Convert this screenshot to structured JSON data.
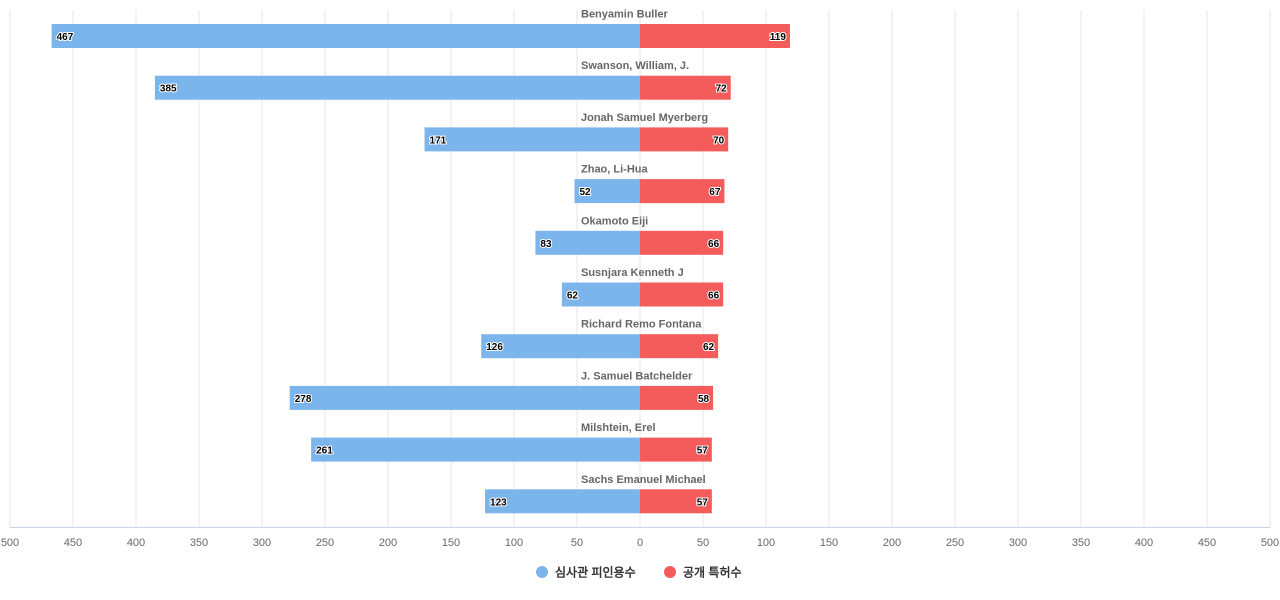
{
  "chart_data": {
    "type": "bar",
    "orientation": "horizontal-butterfly",
    "categories": [
      "Benyamin Buller",
      "Swanson, William, J.",
      "Jonah Samuel Myerberg",
      "Zhao, Li-Hua",
      "Okamoto Eiji",
      "Susnjara Kenneth J",
      "Richard Remo Fontana",
      "J. Samuel Batchelder",
      "Milshtein, Erel",
      "Sachs Emanuel Michael"
    ],
    "series": [
      {
        "name": "심사관 피인용수",
        "side": "left",
        "color": "#7cb5ec",
        "values": [
          467,
          385,
          171,
          52,
          83,
          62,
          126,
          278,
          261,
          123
        ]
      },
      {
        "name": "공개 특허수",
        "side": "right",
        "color": "#f45b5b",
        "values": [
          119,
          72,
          70,
          67,
          66,
          66,
          62,
          58,
          57,
          57
        ]
      }
    ],
    "xlim": [
      -500,
      500
    ],
    "ticks": [
      "500",
      "450",
      "400",
      "350",
      "300",
      "250",
      "200",
      "150",
      "100",
      "50",
      "0",
      "50",
      "100",
      "150",
      "200",
      "250",
      "300",
      "350",
      "400",
      "450",
      "500"
    ],
    "grid": true,
    "legend_position": "bottom-center"
  }
}
